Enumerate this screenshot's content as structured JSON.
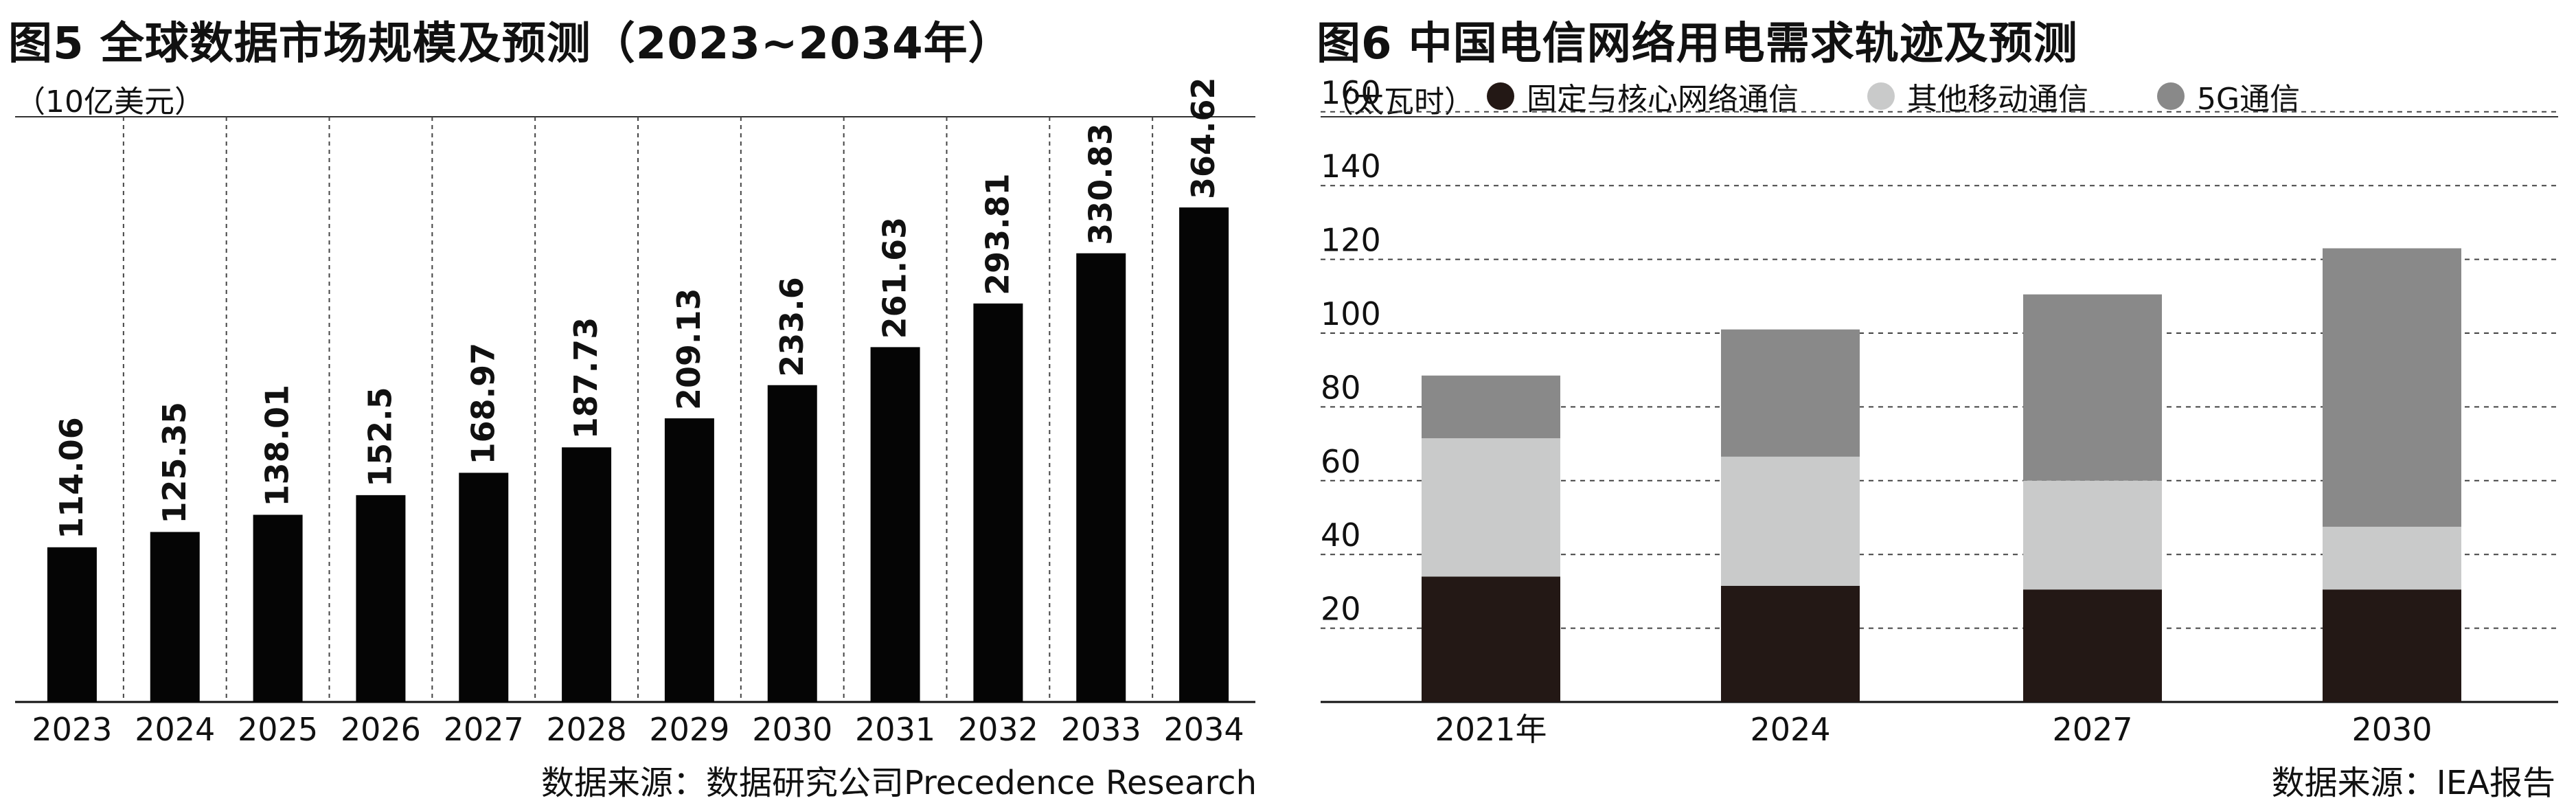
{
  "colors": {
    "bar_black": "#050505",
    "fixed_core": "#231815",
    "other_mobile": "#c9caca",
    "five_g": "#898989",
    "grid": "#444444"
  },
  "figure5": {
    "title": "图5 全球数据市场规模及预测（2023~2034年）",
    "unit": "（10亿美元）",
    "source": "数据来源：数据研究公司Precedence Research"
  },
  "figure6": {
    "title": "图6 中国电信网络用电需求轨迹及预测",
    "unit": "（太瓦时）",
    "source": "数据来源：IEA报告",
    "legend": [
      {
        "label": "固定与核心网络通信",
        "color": "#231815"
      },
      {
        "label": "其他移动通信",
        "color": "#c9caca"
      },
      {
        "label": "5G通信",
        "color": "#898989"
      }
    ]
  },
  "chart_data": [
    {
      "type": "bar",
      "title": "图5 全球数据市场规模及预测（2023~2034年）",
      "ylabel": "（10亿美元）",
      "xlabel": "",
      "categories": [
        "2023",
        "2024",
        "2025",
        "2026",
        "2027",
        "2028",
        "2029",
        "2030",
        "2031",
        "2032",
        "2033",
        "2034"
      ],
      "values": [
        114.06,
        125.35,
        138.01,
        152.5,
        168.97,
        187.73,
        209.13,
        233.6,
        261.63,
        293.81,
        330.83,
        364.62
      ],
      "labels": [
        "114.06",
        "125.35",
        "138.01",
        "152.5",
        "168.97",
        "187.73",
        "209.13",
        "233.6",
        "261.63",
        "293.81",
        "330.83",
        "364.62"
      ],
      "ylim": [
        0,
        420
      ],
      "grid": "vertical dashed separators"
    },
    {
      "type": "bar",
      "stacked": true,
      "title": "图6 中国电信网络用电需求轨迹及预测",
      "ylabel": "（太瓦时）",
      "xlabel": "",
      "categories": [
        "2021年",
        "2024",
        "2027",
        "2030"
      ],
      "series": [
        {
          "name": "固定与核心网络通信",
          "values": [
            34,
            31.5,
            30.5,
            30.5
          ]
        },
        {
          "name": "其他移动通信",
          "values": [
            37.5,
            35,
            29.5,
            17
          ]
        },
        {
          "name": "5G通信",
          "values": [
            17,
            34.5,
            50.5,
            75.5
          ]
        }
      ],
      "yticks": [
        "20",
        "40",
        "60",
        "80",
        "100",
        "120",
        "140",
        "160"
      ],
      "ylim": [
        0,
        160
      ],
      "grid": "horizontal dashed",
      "legend": "top"
    }
  ]
}
